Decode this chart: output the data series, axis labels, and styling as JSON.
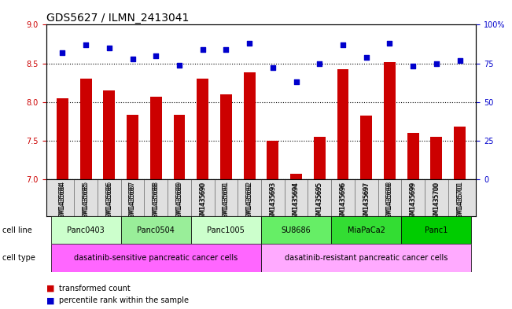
{
  "title": "GDS5627 / ILMN_2413041",
  "samples": [
    "GSM1435684",
    "GSM1435685",
    "GSM1435686",
    "GSM1435687",
    "GSM1435688",
    "GSM1435689",
    "GSM1435690",
    "GSM1435691",
    "GSM1435692",
    "GSM1435693",
    "GSM1435694",
    "GSM1435695",
    "GSM1435696",
    "GSM1435697",
    "GSM1435698",
    "GSM1435699",
    "GSM1435700",
    "GSM1435701"
  ],
  "bar_values": [
    8.05,
    8.3,
    8.15,
    7.83,
    8.07,
    7.83,
    8.3,
    8.1,
    8.38,
    7.5,
    7.07,
    7.55,
    8.42,
    7.82,
    8.52,
    7.6,
    7.55,
    7.68
  ],
  "dot_values": [
    82,
    87,
    85,
    78,
    80,
    74,
    84,
    84,
    88,
    72,
    63,
    75,
    87,
    79,
    88,
    73,
    75,
    77
  ],
  "ylim_left": [
    7,
    9
  ],
  "ylim_right": [
    0,
    100
  ],
  "yticks_left": [
    7,
    7.5,
    8,
    8.5,
    9
  ],
  "yticks_right": [
    0,
    25,
    50,
    75,
    100
  ],
  "bar_color": "#cc0000",
  "dot_color": "#0000cc",
  "cell_lines": [
    {
      "label": "Panc0403",
      "start": 0,
      "end": 3,
      "color": "#ccffcc"
    },
    {
      "label": "Panc0504",
      "start": 3,
      "end": 6,
      "color": "#99ff99"
    },
    {
      "label": "Panc1005",
      "start": 6,
      "end": 9,
      "color": "#ccffcc"
    },
    {
      "label": "SU8686",
      "start": 9,
      "end": 12,
      "color": "#66ff66"
    },
    {
      "label": "MiaPaCa2",
      "start": 12,
      "end": 15,
      "color": "#33ff33"
    },
    {
      "label": "Panc1",
      "start": 15,
      "end": 18,
      "color": "#00ff00"
    }
  ],
  "cell_types": [
    {
      "label": "dasatinib-sensitive pancreatic cancer cells",
      "start": 0,
      "end": 9,
      "color": "#ff66ff"
    },
    {
      "label": "dasatinib-resistant pancreatic cancer cells",
      "start": 9,
      "end": 18,
      "color": "#ffaaff"
    }
  ],
  "grid_color": "#000000",
  "background_color": "#ffffff",
  "left_axis_color": "#cc0000",
  "right_axis_color": "#0000cc"
}
